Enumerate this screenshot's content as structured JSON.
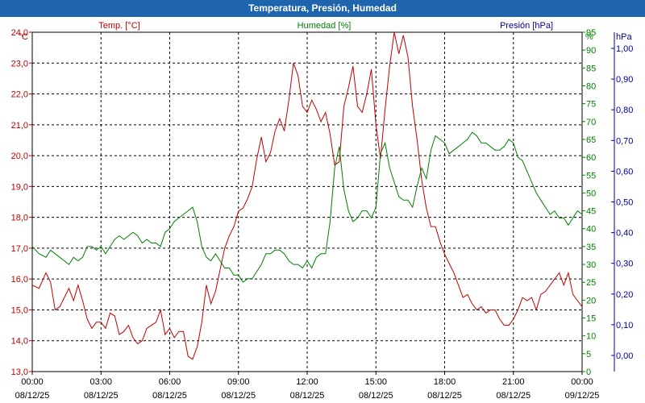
{
  "window": {
    "title": "Temperatura, Presión, Humedad"
  },
  "colors": {
    "temp": "#c00000",
    "humidity": "#008000",
    "pressure": "#000099",
    "title_bar": "#1f65ad",
    "grid": "#000000"
  },
  "chart_data": {
    "type": "line",
    "title": "Temperatura, Presión, Humedad",
    "grid": true,
    "x_labels": [
      {
        "time": "00:00",
        "date": "08/12/25"
      },
      {
        "time": "03:00",
        "date": "08/12/25"
      },
      {
        "time": "06:00",
        "date": "08/12/25"
      },
      {
        "time": "09:00",
        "date": "08/12/25"
      },
      {
        "time": "12:00",
        "date": "08/12/25"
      },
      {
        "time": "15:00",
        "date": "08/12/25"
      },
      {
        "time": "18:00",
        "date": "08/12/25"
      },
      {
        "time": "21:00",
        "date": "08/12/25"
      },
      {
        "time": "00:00",
        "date": "09/12/25"
      }
    ],
    "axes": {
      "temp": {
        "unit": "°C",
        "ylim": [
          13.0,
          24.0
        ],
        "ticks": [
          "13,0",
          "14,0",
          "15,0",
          "16,0",
          "17,0",
          "18,0",
          "19,0",
          "20,0",
          "21,0",
          "22,0",
          "23,0",
          "24,0"
        ]
      },
      "humidity": {
        "unit": "%",
        "ylim": [
          0,
          95
        ],
        "ticks": [
          "0",
          "5",
          "10",
          "15",
          "20",
          "25",
          "30",
          "35",
          "40",
          "45",
          "50",
          "55",
          "60",
          "65",
          "70",
          "75",
          "80",
          "85",
          "90",
          "95"
        ]
      },
      "pressure": {
        "unit": "hPa",
        "ylim": [
          0.0,
          1.0
        ],
        "ticks": [
          "0,00",
          "0,10",
          "0,20",
          "0,30",
          "0,40",
          "0,50",
          "0,60",
          "0,70",
          "0,80",
          "0,90",
          "1,00"
        ]
      }
    },
    "series": [
      {
        "name": "Temp. [°C]",
        "axis": "temp",
        "x": [
          0.0,
          0.3,
          0.6,
          0.8,
          1.0,
          1.2,
          1.4,
          1.6,
          1.8,
          2.0,
          2.2,
          2.4,
          2.6,
          2.8,
          3.0,
          3.2,
          3.4,
          3.6,
          3.8,
          4.0,
          4.2,
          4.4,
          4.6,
          4.8,
          5.0,
          5.2,
          5.4,
          5.6,
          5.8,
          6.0,
          6.2,
          6.4,
          6.6,
          6.8,
          7.0,
          7.2,
          7.4,
          7.6,
          7.8,
          8.0,
          8.2,
          8.4,
          8.6,
          8.8,
          9.0,
          9.2,
          9.4,
          9.6,
          9.8,
          10.0,
          10.2,
          10.4,
          10.6,
          10.8,
          11.0,
          11.2,
          11.4,
          11.6,
          11.8,
          12.0,
          12.2,
          12.4,
          12.6,
          12.8,
          13.0,
          13.2,
          13.4,
          13.6,
          13.8,
          14.0,
          14.2,
          14.4,
          14.6,
          14.8,
          15.0,
          15.2,
          15.4,
          15.6,
          15.8,
          16.0,
          16.2,
          16.4,
          16.6,
          16.8,
          17.0,
          17.2,
          17.4,
          17.6,
          17.8,
          18.0,
          18.2,
          18.4,
          18.6,
          18.8,
          19.0,
          19.2,
          19.4,
          19.6,
          19.8,
          20.0,
          20.2,
          20.4,
          20.6,
          20.8,
          21.0,
          21.2,
          21.4,
          21.6,
          21.8,
          22.0,
          22.2,
          22.4,
          22.6,
          22.8,
          23.0,
          23.2,
          23.4,
          23.6,
          23.8,
          24.0
        ],
        "values": [
          15.8,
          15.7,
          16.2,
          15.9,
          15.0,
          15.1,
          15.4,
          15.7,
          15.3,
          15.8,
          15.3,
          14.7,
          14.4,
          14.6,
          14.6,
          14.4,
          14.9,
          14.8,
          14.2,
          14.3,
          14.5,
          14.1,
          13.9,
          14.0,
          14.4,
          14.5,
          14.6,
          15.0,
          14.2,
          14.4,
          14.1,
          14.3,
          14.3,
          13.5,
          13.4,
          13.8,
          14.6,
          15.8,
          15.2,
          15.6,
          16.3,
          17.0,
          17.4,
          17.7,
          18.2,
          18.3,
          18.6,
          19.0,
          19.9,
          20.6,
          19.8,
          20.1,
          20.8,
          21.2,
          20.8,
          21.8,
          23.0,
          22.6,
          21.6,
          21.4,
          21.8,
          21.5,
          21.1,
          21.4,
          20.7,
          19.7,
          19.8,
          21.6,
          22.2,
          22.9,
          21.6,
          21.4,
          22.0,
          22.8,
          21.0,
          19.9,
          21.5,
          22.9,
          24.0,
          23.3,
          23.9,
          23.2,
          21.6,
          20.5,
          19.2,
          18.3,
          17.7,
          17.7,
          17.2,
          16.8,
          16.5,
          16.2,
          15.8,
          15.4,
          15.5,
          15.2,
          15.0,
          15.1,
          14.9,
          15.0,
          15.0,
          14.7,
          14.5,
          14.5,
          14.7,
          15.0,
          15.4,
          15.3,
          15.4,
          15.0,
          15.5,
          15.6,
          15.8,
          16.0,
          16.2,
          15.8,
          16.2,
          15.5,
          15.3,
          15.1
        ],
        "color": "#c00000"
      },
      {
        "name": "Humedad [%]",
        "axis": "humidity",
        "x": [
          0.0,
          0.3,
          0.6,
          0.8,
          1.0,
          1.2,
          1.4,
          1.6,
          1.8,
          2.0,
          2.2,
          2.4,
          2.6,
          2.8,
          3.0,
          3.2,
          3.4,
          3.6,
          3.8,
          4.0,
          4.2,
          4.4,
          4.6,
          4.8,
          5.0,
          5.2,
          5.4,
          5.6,
          5.8,
          6.0,
          6.2,
          6.4,
          6.6,
          6.8,
          7.0,
          7.2,
          7.4,
          7.6,
          7.8,
          8.0,
          8.2,
          8.4,
          8.6,
          8.8,
          9.0,
          9.2,
          9.4,
          9.6,
          9.8,
          10.0,
          10.2,
          10.4,
          10.6,
          10.8,
          11.0,
          11.2,
          11.4,
          11.6,
          11.8,
          12.0,
          12.2,
          12.4,
          12.6,
          12.8,
          13.0,
          13.2,
          13.4,
          13.6,
          13.8,
          14.0,
          14.2,
          14.4,
          14.6,
          14.8,
          15.0,
          15.2,
          15.4,
          15.6,
          15.8,
          16.0,
          16.2,
          16.4,
          16.6,
          16.8,
          17.0,
          17.2,
          17.4,
          17.6,
          17.8,
          18.0,
          18.2,
          18.4,
          18.6,
          18.8,
          19.0,
          19.2,
          19.4,
          19.6,
          19.8,
          20.0,
          20.2,
          20.4,
          20.6,
          20.8,
          21.0,
          21.2,
          21.4,
          21.6,
          21.8,
          22.0,
          22.2,
          22.4,
          22.6,
          22.8,
          23.0,
          23.2,
          23.4,
          23.6,
          23.8,
          24.0
        ],
        "values": [
          35,
          33,
          32,
          34,
          33,
          32,
          31,
          30,
          32,
          31,
          32,
          35,
          35,
          34,
          35,
          33,
          35,
          37,
          38,
          37,
          38,
          39,
          38,
          36,
          37,
          36,
          36,
          35,
          39,
          40,
          42,
          43,
          44,
          45,
          46,
          42,
          35,
          32,
          31,
          33,
          31,
          29,
          29,
          27,
          27,
          25,
          26,
          26,
          28,
          30,
          33,
          33,
          34,
          34,
          33,
          31,
          30,
          30,
          29,
          31,
          29,
          32,
          33,
          33,
          42,
          57,
          63,
          51,
          45,
          42,
          43,
          45,
          45,
          43,
          46,
          61,
          64,
          57,
          53,
          49,
          48,
          48,
          46,
          52,
          57,
          54,
          62,
          66,
          65,
          64,
          61,
          62,
          63,
          64,
          65,
          67,
          66,
          64,
          64,
          63,
          62,
          62,
          63,
          65,
          64,
          60,
          59,
          56,
          53,
          50,
          48,
          46,
          44,
          45,
          43,
          43,
          41,
          43,
          45,
          44
        ],
        "color": "#008000"
      }
    ]
  }
}
